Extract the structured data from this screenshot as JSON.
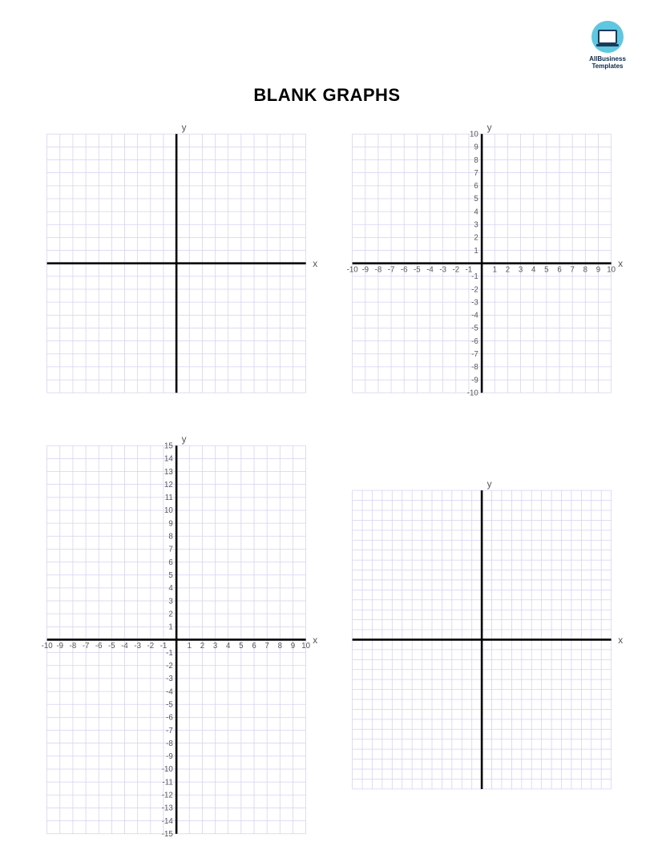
{
  "logo": {
    "line1": "AllBusiness",
    "line2": "Templates"
  },
  "title": "BLANK GRAPHS",
  "style": {
    "grid_color": "#d2d2f0",
    "axis_color": "#000000",
    "tick_font_size": 9,
    "tick_color": "#555555",
    "axis_label_color": "#555555",
    "axis_label_font_size": 11,
    "axis_width": 2.4
  },
  "graphs": [
    {
      "id": "graph-1",
      "type": "cartesian-grid",
      "x": {
        "min": -10,
        "max": 10,
        "step": 1,
        "label": "x",
        "show_ticks": false
      },
      "y": {
        "min": -10,
        "max": 10,
        "step": 1,
        "label": "y",
        "show_ticks": false
      }
    },
    {
      "id": "graph-2",
      "type": "cartesian-grid",
      "x": {
        "min": -10,
        "max": 10,
        "step": 1,
        "label": "x",
        "show_ticks": true
      },
      "y": {
        "min": -10,
        "max": 10,
        "step": 1,
        "label": "y",
        "show_ticks": true
      }
    },
    {
      "id": "graph-3",
      "type": "cartesian-grid",
      "x": {
        "min": -10,
        "max": 10,
        "step": 1,
        "label": "x",
        "show_ticks": true
      },
      "y": {
        "min": -15,
        "max": 15,
        "step": 1,
        "label": "y",
        "show_ticks": true
      }
    },
    {
      "id": "graph-4",
      "type": "cartesian-grid",
      "x": {
        "min": -13,
        "max": 13,
        "step": 1,
        "label": "x",
        "show_ticks": false
      },
      "y": {
        "min": -15,
        "max": 15,
        "step": 1,
        "label": "y",
        "show_ticks": false
      }
    }
  ]
}
